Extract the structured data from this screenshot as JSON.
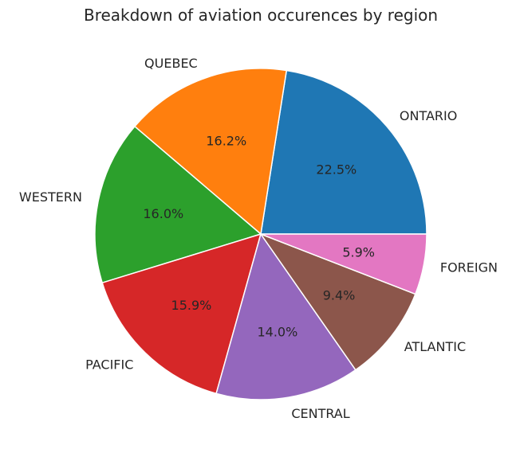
{
  "chart_data": {
    "type": "pie",
    "title": "Breakdown of aviation occurences by region",
    "categories": [
      "ONTARIO",
      "QUEBEC",
      "WESTERN",
      "PACIFIC",
      "CENTRAL",
      "ATLANTIC",
      "FOREIGN"
    ],
    "values": [
      22.5,
      16.2,
      16.0,
      15.9,
      14.0,
      9.4,
      5.9
    ],
    "percent_labels": [
      "22.5%",
      "16.2%",
      "16.0%",
      "15.9%",
      "14.0%",
      "9.4%",
      "5.9%"
    ],
    "colors": [
      "#1f77b4",
      "#ff7f0e",
      "#2ca02c",
      "#d62728",
      "#9467bd",
      "#8c564b",
      "#e377c2"
    ],
    "start_angle_deg": 0,
    "direction": "counterclockwise"
  }
}
